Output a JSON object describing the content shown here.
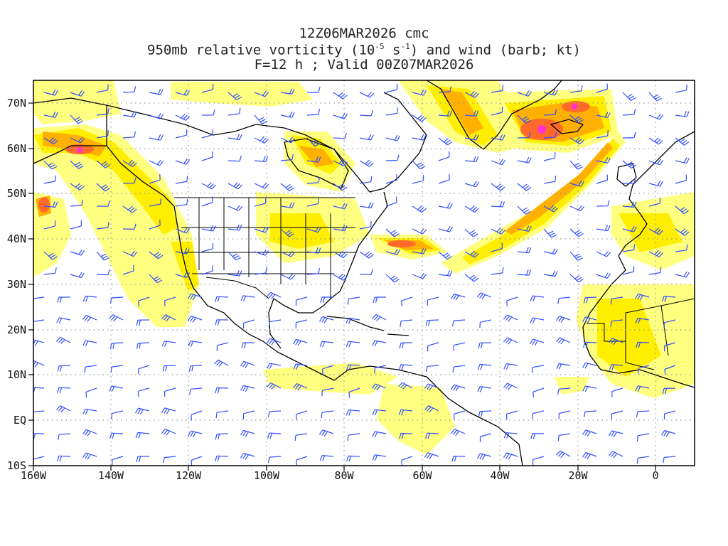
{
  "title": {
    "line1": "12Z06MAR2026 cmc",
    "line2_pre": "950mb relative vorticity (10",
    "line2_exp1": "-5",
    "line2_mid": " s",
    "line2_exp2": "-1",
    "line2_post": ") and wind (barb; kt)",
    "line3": "F=12 h ; Valid 00Z07MAR2026"
  },
  "axes": {
    "lon_labels": [
      "160W",
      "140W",
      "120W",
      "100W",
      "80W",
      "60W",
      "40W",
      "20W",
      "0"
    ],
    "lon_values": [
      -160,
      -140,
      -120,
      -100,
      -80,
      -60,
      -40,
      -20,
      0
    ],
    "lat_labels": [
      "70N",
      "60N",
      "50N",
      "40N",
      "30N",
      "20N",
      "10N",
      "EQ",
      "10S"
    ],
    "lat_values": [
      70,
      60,
      50,
      40,
      30,
      20,
      10,
      0,
      -10
    ],
    "lon_range": [
      -160,
      10
    ],
    "lat_range": [
      -10,
      75
    ]
  },
  "colors": {
    "light_yellow": "#ffff80",
    "yellow": "#ffee00",
    "orange": "#ffb000",
    "red_orange": "#ff6a2a",
    "magenta": "#ff30d0",
    "barb": "#3050ff",
    "coast": "#000000",
    "grid": "#999999"
  }
}
